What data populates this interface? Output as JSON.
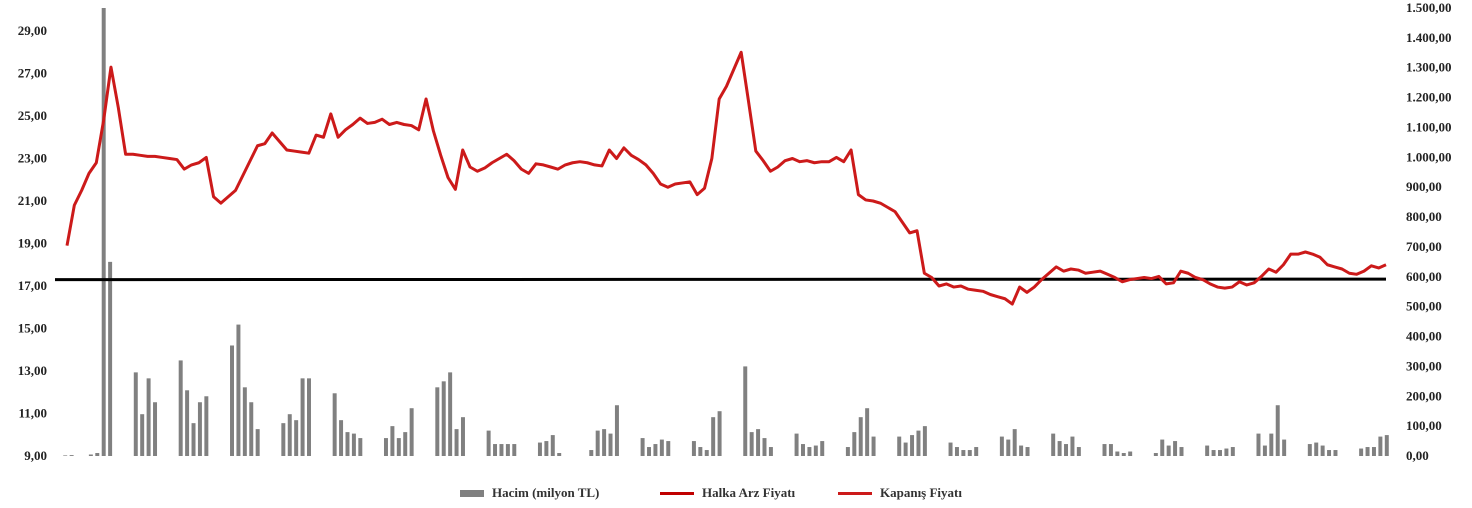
{
  "chart_data": {
    "type": "bar+line",
    "left_axis": {
      "ticks": [
        "29,00",
        "27,00",
        "25,00",
        "23,00",
        "21,00",
        "19,00",
        "17,00",
        "15,00",
        "13,00",
        "11,00",
        "9,00"
      ],
      "min": 9,
      "max": 30
    },
    "right_axis": {
      "ticks": [
        "1.500,00",
        "1.400,00",
        "1.300,00",
        "1.200,00",
        "1.100,00",
        "1.000,00",
        "900,00",
        "800,00",
        "700,00",
        "600,00",
        "500,00",
        "400,00",
        "300,00",
        "200,00",
        "100,00",
        "0,00"
      ],
      "min": 0,
      "max": 1500
    },
    "series": [
      {
        "name": "Hacim (milyon TL)",
        "kind": "bar",
        "axis": "right",
        "color": "#808080",
        "values": [
          2,
          3,
          0,
          0,
          5,
          10,
          1500,
          650,
          0,
          0,
          0,
          280,
          140,
          260,
          180,
          0,
          0,
          0,
          320,
          220,
          110,
          180,
          200,
          0,
          0,
          0,
          370,
          440,
          230,
          180,
          90,
          0,
          0,
          0,
          110,
          140,
          120,
          260,
          260,
          0,
          0,
          0,
          210,
          120,
          80,
          75,
          60,
          0,
          0,
          0,
          60,
          100,
          60,
          80,
          160,
          0,
          0,
          0,
          230,
          250,
          280,
          90,
          130,
          0,
          0,
          0,
          85,
          40,
          40,
          40,
          40,
          0,
          0,
          0,
          45,
          50,
          70,
          10,
          0,
          0,
          0,
          0,
          20,
          85,
          90,
          75,
          170,
          0,
          0,
          0,
          60,
          30,
          40,
          55,
          50,
          0,
          0,
          0,
          50,
          30,
          20,
          130,
          150,
          0,
          0,
          0,
          300,
          80,
          90,
          60,
          30,
          0,
          0,
          0,
          75,
          40,
          30,
          35,
          50,
          0,
          0,
          0,
          30,
          80,
          130,
          160,
          65,
          0,
          0,
          0,
          65,
          45,
          70,
          85,
          100,
          0,
          0,
          0,
          45,
          30,
          20,
          20,
          30,
          0,
          0,
          0,
          65,
          55,
          90,
          35,
          30,
          0,
          0,
          0,
          75,
          50,
          40,
          65,
          30,
          0,
          0,
          0,
          40,
          40,
          15,
          10,
          15,
          0,
          0,
          0,
          10,
          55,
          35,
          50,
          30,
          0,
          0,
          0,
          35,
          20,
          20,
          25,
          30,
          0,
          0,
          0,
          75,
          35,
          75,
          170,
          55,
          0,
          0,
          0,
          40,
          45,
          35,
          20,
          20,
          0,
          0,
          0,
          25,
          30,
          30,
          65,
          70
        ]
      },
      {
        "name": "Halka Arz Fiyatı",
        "kind": "line",
        "axis": "left",
        "color": "#c00000",
        "values": [
          17.3
        ]
      },
      {
        "name": "Kapanış Fiyatı",
        "kind": "line",
        "axis": "left",
        "color": "#cc1a1a",
        "values": [
          18.9,
          20.8,
          21.5,
          22.3,
          22.8,
          24.8,
          27.3,
          25.4,
          23.2,
          23.2,
          23.15,
          23.1,
          23.1,
          23.05,
          23.0,
          22.95,
          22.5,
          22.7,
          22.8,
          23.05,
          21.2,
          20.9,
          21.2,
          21.5,
          22.2,
          22.9,
          23.6,
          23.7,
          24.2,
          23.8,
          23.4,
          23.35,
          23.3,
          23.25,
          24.1,
          24.0,
          25.1,
          24.0,
          24.35,
          24.6,
          24.9,
          24.65,
          24.7,
          24.85,
          24.6,
          24.7,
          24.6,
          24.55,
          24.35,
          25.8,
          24.3,
          23.15,
          22.1,
          21.55,
          23.4,
          22.6,
          22.4,
          22.55,
          22.8,
          23.0,
          23.2,
          22.9,
          22.5,
          22.3,
          22.75,
          22.7,
          22.6,
          22.5,
          22.7,
          22.8,
          22.85,
          22.8,
          22.7,
          22.65,
          23.4,
          23.0,
          23.5,
          23.15,
          22.95,
          22.7,
          22.3,
          21.8,
          21.65,
          21.8,
          21.85,
          21.9,
          21.3,
          21.6,
          23.0,
          25.8,
          26.4,
          27.2,
          28.0,
          25.7,
          23.35,
          22.9,
          22.4,
          22.6,
          22.9,
          23.0,
          22.85,
          22.9,
          22.8,
          22.85,
          22.85,
          23.05,
          22.85,
          23.4,
          21.3,
          21.05,
          21.0,
          20.9,
          20.7,
          20.5,
          20.0,
          19.5,
          19.6,
          17.6,
          17.4,
          17.0,
          17.1,
          16.95,
          17.0,
          16.85,
          16.8,
          16.75,
          16.6,
          16.5,
          16.4,
          16.15,
          16.95,
          16.7,
          16.95,
          17.3,
          17.6,
          17.9,
          17.7,
          17.8,
          17.75,
          17.6,
          17.65,
          17.7,
          17.55,
          17.4,
          17.2,
          17.3,
          17.35,
          17.4,
          17.35,
          17.45,
          17.1,
          17.15,
          17.7,
          17.6,
          17.4,
          17.3,
          17.1,
          16.95,
          16.9,
          16.95,
          17.2,
          17.05,
          17.15,
          17.45,
          17.8,
          17.65,
          18.0,
          18.5,
          18.5,
          18.6,
          18.5,
          18.35,
          18.0,
          17.9,
          17.8,
          17.6,
          17.55,
          17.7,
          17.95,
          17.85,
          18.0
        ]
      }
    ],
    "legend_position": "bottom"
  }
}
